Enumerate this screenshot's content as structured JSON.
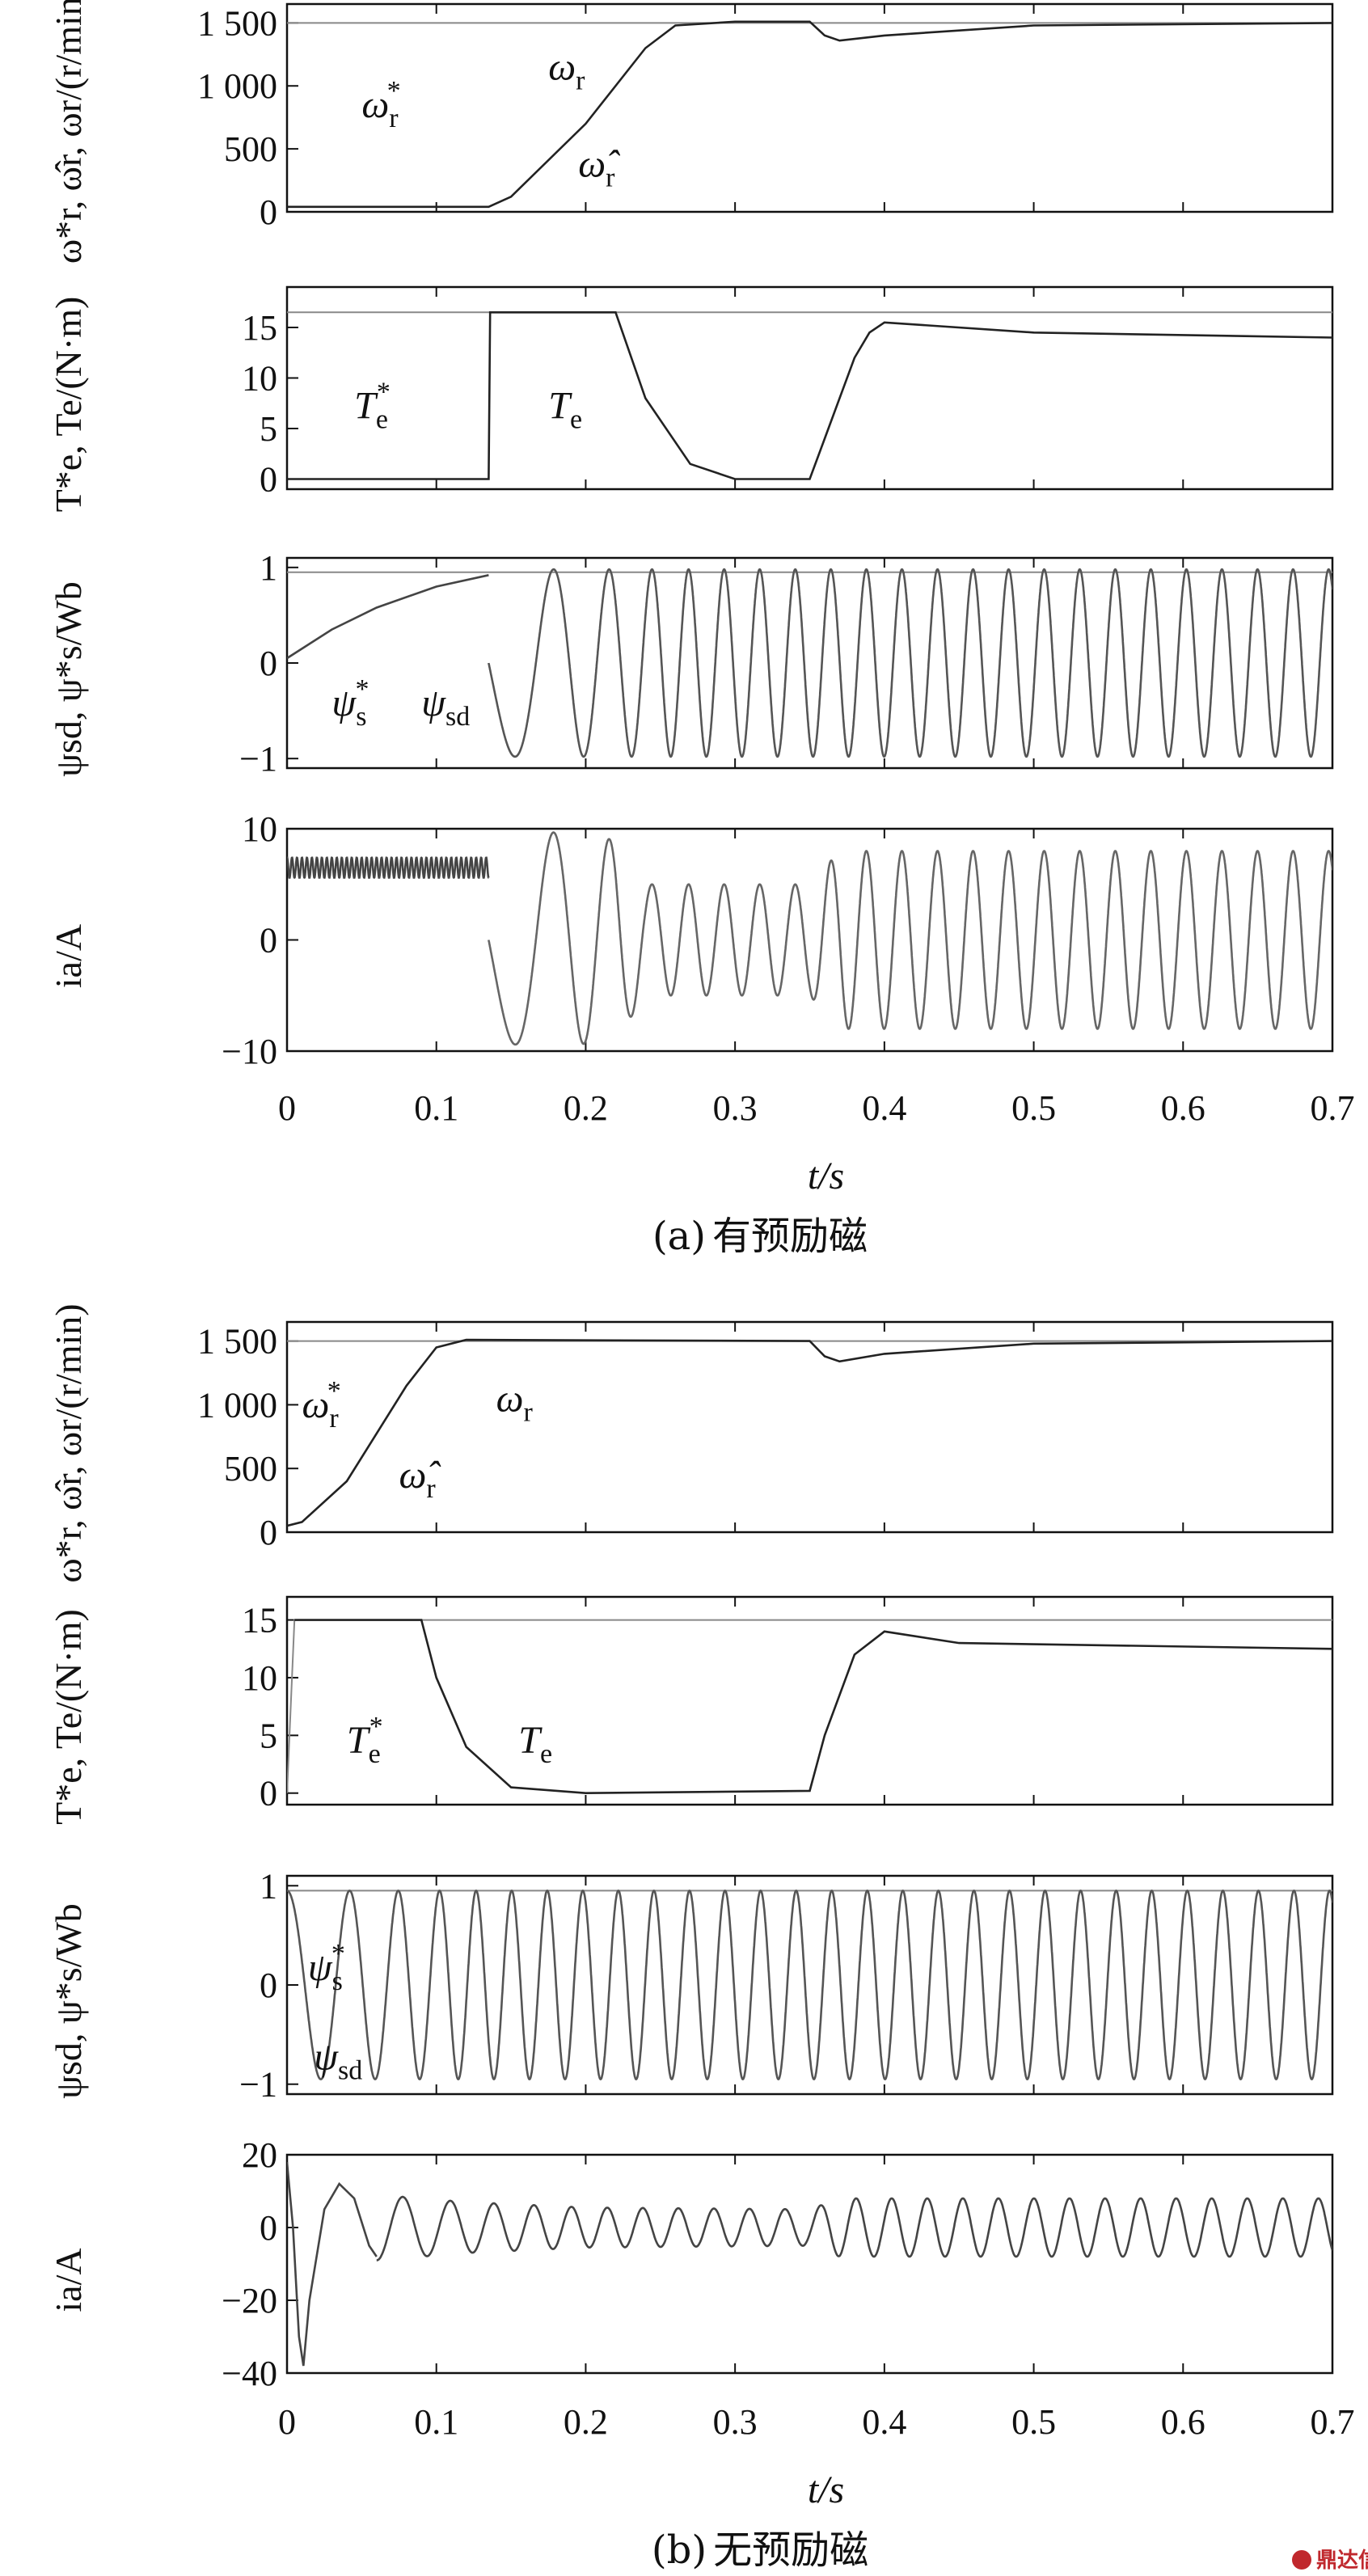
{
  "chart_data": [
    {
      "type": "line",
      "group": "a",
      "panel": 0,
      "ylabel": "ω*r, ω̂r, ωr/(r/min)",
      "ylim": [
        0,
        1650
      ],
      "xlim": [
        0,
        0.7
      ],
      "yticks": [
        {
          "v": 0,
          "t": "0"
        },
        {
          "v": 500,
          "t": "500"
        },
        {
          "v": 1000,
          "t": "1 000"
        },
        {
          "v": 1500,
          "t": "1 500"
        }
      ],
      "series": [
        {
          "key": "ref",
          "color": "#888888",
          "points": [
            [
              0,
              1500
            ],
            [
              0.7,
              1500
            ]
          ]
        },
        {
          "key": "est",
          "color": "#222222",
          "points": [
            [
              0,
              40
            ],
            [
              0.135,
              40
            ],
            [
              0.15,
              120
            ],
            [
              0.2,
              700
            ],
            [
              0.24,
              1300
            ],
            [
              0.26,
              1480
            ],
            [
              0.3,
              1510
            ],
            [
              0.35,
              1510
            ],
            [
              0.36,
              1400
            ],
            [
              0.37,
              1360
            ],
            [
              0.4,
              1400
            ],
            [
              0.5,
              1480
            ],
            [
              0.7,
              1500
            ]
          ]
        }
      ],
      "annotations": [
        {
          "text": "ω",
          "sub": "r",
          "sup": "*",
          "x": 0.05,
          "y": 750
        },
        {
          "text": "ω",
          "sub": "r",
          "x": 0.175,
          "y": 1050
        },
        {
          "text": "ω̂",
          "sub": "r",
          "x": 0.195,
          "y": 280
        }
      ]
    },
    {
      "type": "line",
      "group": "a",
      "panel": 1,
      "ylabel": "T*e, Te/(N·m)",
      "ylim": [
        -1,
        19
      ],
      "xlim": [
        0,
        0.7
      ],
      "yticks": [
        {
          "v": 0,
          "t": "0"
        },
        {
          "v": 5,
          "t": "5"
        },
        {
          "v": 10,
          "t": "10"
        },
        {
          "v": 15,
          "t": "15"
        }
      ],
      "series": [
        {
          "key": "ref",
          "color": "#888888",
          "points": [
            [
              0,
              16.5
            ],
            [
              0.7,
              16.5
            ]
          ]
        },
        {
          "key": "te",
          "color": "#222222",
          "points": [
            [
              0,
              0
            ],
            [
              0.135,
              0
            ],
            [
              0.136,
              16.5
            ],
            [
              0.22,
              16.5
            ],
            [
              0.24,
              8
            ],
            [
              0.27,
              1.5
            ],
            [
              0.3,
              0
            ],
            [
              0.35,
              0
            ],
            [
              0.36,
              4
            ],
            [
              0.38,
              12
            ],
            [
              0.39,
              14.5
            ],
            [
              0.4,
              15.5
            ],
            [
              0.5,
              14.5
            ],
            [
              0.7,
              14
            ]
          ]
        }
      ],
      "annotations": [
        {
          "text": "T",
          "sub": "e",
          "sup": "*",
          "x": 0.045,
          "y": 6
        },
        {
          "text": "T",
          "sub": "e",
          "x": 0.175,
          "y": 6
        }
      ]
    },
    {
      "type": "line",
      "group": "a",
      "panel": 2,
      "ylabel": "ψsd, ψ*s/Wb",
      "ylim": [
        -1.1,
        1.1
      ],
      "xlim": [
        0,
        0.7
      ],
      "yticks": [
        {
          "v": -1,
          "t": "−1"
        },
        {
          "v": 0,
          "t": "0"
        },
        {
          "v": 1,
          "t": "1"
        }
      ],
      "series": [
        {
          "key": "ref",
          "color": "#888888",
          "points": [
            [
              0,
              0.95
            ],
            [
              0.7,
              0.95
            ]
          ]
        },
        {
          "key": "ramp",
          "color": "#444444",
          "points": [
            [
              0,
              0.05
            ],
            [
              0.03,
              0.35
            ],
            [
              0.06,
              0.58
            ],
            [
              0.1,
              0.8
            ],
            [
              0.135,
              0.92
            ]
          ]
        },
        {
          "key": "osc",
          "color": "#555555",
          "amp": 0.98,
          "t0": 0.135,
          "t1": 0.7,
          "phase": 1.5708,
          "fstart": 12,
          "fend": 42,
          "tramp": 0.26
        }
      ],
      "annotations": [
        {
          "text": "ψ",
          "sub": "s",
          "sup": "*",
          "x": 0.03,
          "y": -0.55
        },
        {
          "text": "ψ",
          "sub": "sd",
          "x": 0.09,
          "y": -0.55
        }
      ]
    },
    {
      "type": "line",
      "group": "a",
      "panel": 3,
      "ylabel": "ia/A",
      "ylim": [
        -10,
        10
      ],
      "xlim": [
        0,
        0.7
      ],
      "xticks": [
        {
          "v": 0,
          "t": "0"
        },
        {
          "v": 0.1,
          "t": "0.1"
        },
        {
          "v": 0.2,
          "t": "0.2"
        },
        {
          "v": 0.3,
          "t": "0.3"
        },
        {
          "v": 0.4,
          "t": "0.4"
        },
        {
          "v": 0.5,
          "t": "0.5"
        },
        {
          "v": 0.6,
          "t": "0.6"
        },
        {
          "v": 0.7,
          "t": "0.7"
        }
      ],
      "xlabel": "t/s",
      "yticks": [
        {
          "v": -10,
          "t": "−10"
        },
        {
          "v": 0,
          "t": "0"
        },
        {
          "v": 10,
          "t": "10"
        }
      ],
      "series": [
        {
          "key": "dc",
          "color": "#444444",
          "amp": 0.9,
          "offset": 6.5,
          "t0": 0,
          "t1": 0.135,
          "phase": 0,
          "fstart": 300,
          "fend": 300,
          "tramp": 0.135
        },
        {
          "key": "osc",
          "color": "#666666",
          "t0": 0.135,
          "t1": 0.7,
          "phase": 1.5708,
          "fstart": 12,
          "fend": 42,
          "tramp": 0.26,
          "ampProfile": [
            [
              0.135,
              9
            ],
            [
              0.17,
              9.8
            ],
            [
              0.22,
              9
            ],
            [
              0.24,
              5
            ],
            [
              0.35,
              5
            ],
            [
              0.37,
              8
            ],
            [
              0.7,
              8
            ]
          ]
        }
      ],
      "annotations": []
    },
    {
      "type": "line",
      "group": "b",
      "panel": 0,
      "ylabel": "ω*r, ω̂r, ωr/(r/min)",
      "ylim": [
        0,
        1650
      ],
      "xlim": [
        0,
        0.7
      ],
      "yticks": [
        {
          "v": 0,
          "t": "0"
        },
        {
          "v": 500,
          "t": "500"
        },
        {
          "v": 1000,
          "t": "1 000"
        },
        {
          "v": 1500,
          "t": "1 500"
        }
      ],
      "series": [
        {
          "key": "ref",
          "color": "#888888",
          "points": [
            [
              0,
              1500
            ],
            [
              0.7,
              1500
            ]
          ]
        },
        {
          "key": "est",
          "color": "#222222",
          "points": [
            [
              0,
              50
            ],
            [
              0.01,
              80
            ],
            [
              0.04,
              400
            ],
            [
              0.08,
              1150
            ],
            [
              0.1,
              1450
            ],
            [
              0.12,
              1510
            ],
            [
              0.35,
              1500
            ],
            [
              0.36,
              1380
            ],
            [
              0.37,
              1340
            ],
            [
              0.4,
              1400
            ],
            [
              0.5,
              1480
            ],
            [
              0.7,
              1500
            ]
          ]
        }
      ],
      "annotations": [
        {
          "text": "ω",
          "sub": "r",
          "sup": "*",
          "x": 0.01,
          "y": 900
        },
        {
          "text": "ω",
          "sub": "r",
          "x": 0.14,
          "y": 950
        },
        {
          "text": "ω̂",
          "sub": "r",
          "x": 0.075,
          "y": 350
        }
      ]
    },
    {
      "type": "line",
      "group": "b",
      "panel": 1,
      "ylabel": "T*e, Te/(N·m)",
      "ylim": [
        -1,
        17
      ],
      "xlim": [
        0,
        0.7
      ],
      "yticks": [
        {
          "v": 0,
          "t": "0"
        },
        {
          "v": 5,
          "t": "5"
        },
        {
          "v": 10,
          "t": "10"
        },
        {
          "v": 15,
          "t": "15"
        }
      ],
      "series": [
        {
          "key": "ref",
          "color": "#888888",
          "points": [
            [
              0,
              0
            ],
            [
              0.005,
              15
            ],
            [
              0.7,
              15
            ]
          ]
        },
        {
          "key": "te",
          "color": "#222222",
          "points": [
            [
              0.005,
              15
            ],
            [
              0.09,
              15
            ],
            [
              0.1,
              10
            ],
            [
              0.12,
              4
            ],
            [
              0.15,
              0.5
            ],
            [
              0.2,
              0
            ],
            [
              0.35,
              0.2
            ],
            [
              0.36,
              5
            ],
            [
              0.38,
              12
            ],
            [
              0.4,
              14
            ],
            [
              0.45,
              13
            ],
            [
              0.7,
              12.5
            ]
          ]
        }
      ],
      "annotations": [
        {
          "text": "T",
          "sub": "e",
          "sup": "*",
          "x": 0.04,
          "y": 3.5
        },
        {
          "text": "T",
          "sub": "e",
          "x": 0.155,
          "y": 3.5
        }
      ]
    },
    {
      "type": "line",
      "group": "b",
      "panel": 2,
      "ylabel": "ψsd, ψ*s/Wb",
      "ylim": [
        -1.1,
        1.1
      ],
      "xlim": [
        0,
        0.7
      ],
      "yticks": [
        {
          "v": -1,
          "t": "−1"
        },
        {
          "v": 0,
          "t": "0"
        },
        {
          "v": 1,
          "t": "1"
        }
      ],
      "series": [
        {
          "key": "ref",
          "color": "#888888",
          "points": [
            [
              0,
              0.95
            ],
            [
              0.7,
              0.95
            ]
          ]
        },
        {
          "key": "osc",
          "color": "#555555",
          "amp": 0.95,
          "t0": 0,
          "t1": 0.7,
          "phase": 0,
          "fstart": 20,
          "fend": 42,
          "tramp": 0.12
        }
      ],
      "annotations": [
        {
          "text": "ψ",
          "sub": "s",
          "sup": "*",
          "x": 0.014,
          "y": 0.05
        },
        {
          "text": "ψ",
          "sub": "sd",
          "x": 0.018,
          "y": -0.85
        }
      ]
    },
    {
      "type": "line",
      "group": "b",
      "panel": 3,
      "ylabel": "ia/A",
      "ylim": [
        -40,
        20
      ],
      "xlim": [
        0,
        0.7
      ],
      "xticks": [
        {
          "v": 0,
          "t": "0"
        },
        {
          "v": 0.1,
          "t": "0.1"
        },
        {
          "v": 0.2,
          "t": "0.2"
        },
        {
          "v": 0.3,
          "t": "0.3"
        },
        {
          "v": 0.4,
          "t": "0.4"
        },
        {
          "v": 0.5,
          "t": "0.5"
        },
        {
          "v": 0.6,
          "t": "0.6"
        },
        {
          "v": 0.7,
          "t": "0.7"
        }
      ],
      "xlabel": "t/s",
      "yticks": [
        {
          "v": -40,
          "t": "−40"
        },
        {
          "v": -20,
          "t": "−20"
        },
        {
          "v": 0,
          "t": "0"
        },
        {
          "v": 20,
          "t": "20"
        }
      ],
      "series": [
        {
          "key": "transient",
          "color": "#444444",
          "points": [
            [
              0,
              18
            ],
            [
              0.004,
              0
            ],
            [
              0.008,
              -30
            ],
            [
              0.011,
              -38
            ],
            [
              0.015,
              -20
            ],
            [
              0.025,
              5
            ],
            [
              0.035,
              12
            ],
            [
              0.045,
              8
            ],
            [
              0.055,
              -5
            ],
            [
              0.06,
              -8
            ]
          ]
        },
        {
          "key": "osc",
          "color": "#444444",
          "t0": 0.06,
          "t1": 0.7,
          "phase": 3.1,
          "fstart": 28,
          "fend": 42,
          "tramp": 0.2,
          "ampProfile": [
            [
              0.06,
              9
            ],
            [
              0.12,
              7
            ],
            [
              0.2,
              5.5
            ],
            [
              0.35,
              5
            ],
            [
              0.37,
              8
            ],
            [
              0.7,
              8
            ]
          ]
        }
      ],
      "annotations": []
    }
  ],
  "captions": {
    "a": {
      "label": "(a)",
      "text": "有预励磁"
    },
    "b": {
      "label": "(b)",
      "text": "无预励磁"
    }
  },
  "watermark": "鼎达信"
}
